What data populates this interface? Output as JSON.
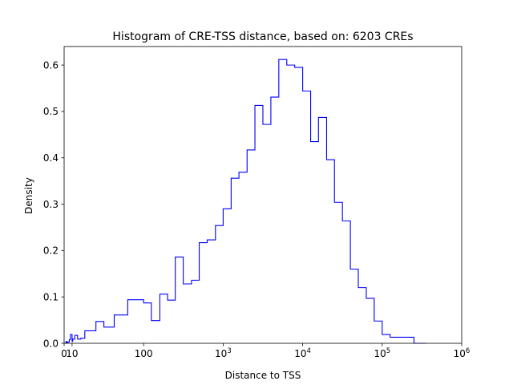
{
  "chart_data": {
    "type": "histogram-step",
    "title": "Histogram of CRE-TSS distance, based on: 6203 CREs",
    "xlabel": "Distance to TSS",
    "ylabel": "Density",
    "x_scale": "symlog",
    "x_linear_threshold": 100,
    "xlim": [
      0,
      1000000
    ],
    "ylim": [
      0,
      0.64
    ],
    "grid": false,
    "legend": "none",
    "line_color": "#0000ff",
    "x_ticks": [
      {
        "value": 0,
        "base": "0",
        "exp": ""
      },
      {
        "value": 10,
        "base": "10",
        "exp": ""
      },
      {
        "value": 100,
        "base": "100",
        "exp": ""
      },
      {
        "value": 1000,
        "base": "10",
        "exp": "3"
      },
      {
        "value": 10000,
        "base": "10",
        "exp": "4"
      },
      {
        "value": 100000,
        "base": "10",
        "exp": "5"
      },
      {
        "value": 1000000,
        "base": "10",
        "exp": "6"
      }
    ],
    "y_ticks": [
      "0.0",
      "0.1",
      "0.2",
      "0.3",
      "0.4",
      "0.5",
      "0.6"
    ],
    "bins": {
      "edges": [
        2.3,
        3.2,
        4.6,
        6.5,
        8.0,
        10.0,
        10.8,
        13.5,
        17.0,
        21.0,
        26.0,
        31.5,
        40,
        50,
        63,
        80,
        100,
        125,
        160,
        200,
        250,
        315,
        400,
        500,
        630,
        800,
        1000,
        1260,
        1580,
        2000,
        2510,
        3160,
        3980,
        5010,
        6310,
        7940,
        10000,
        12600,
        15800,
        20000,
        25100,
        31600,
        39800,
        50100,
        63100,
        79400,
        100000,
        125900,
        158500,
        199500,
        251200,
        354800
      ],
      "density": [
        0.004,
        0.001,
        0.003,
        0.008,
        0.019,
        0.004,
        0.009,
        0.017,
        0.009,
        0.011,
        0.027,
        0.027,
        0.047,
        0.035,
        0.061,
        0.094,
        0.087,
        0.049,
        0.106,
        0.093,
        0.186,
        0.128,
        0.136,
        0.217,
        0.223,
        0.254,
        0.29,
        0.356,
        0.369,
        0.417,
        0.513,
        0.472,
        0.531,
        0.612,
        0.6,
        0.595,
        0.544,
        0.435,
        0.487,
        0.396,
        0.304,
        0.264,
        0.16,
        0.12,
        0.097,
        0.048,
        0.019,
        0.013,
        0.013,
        0.013,
        0.0
      ]
    }
  }
}
